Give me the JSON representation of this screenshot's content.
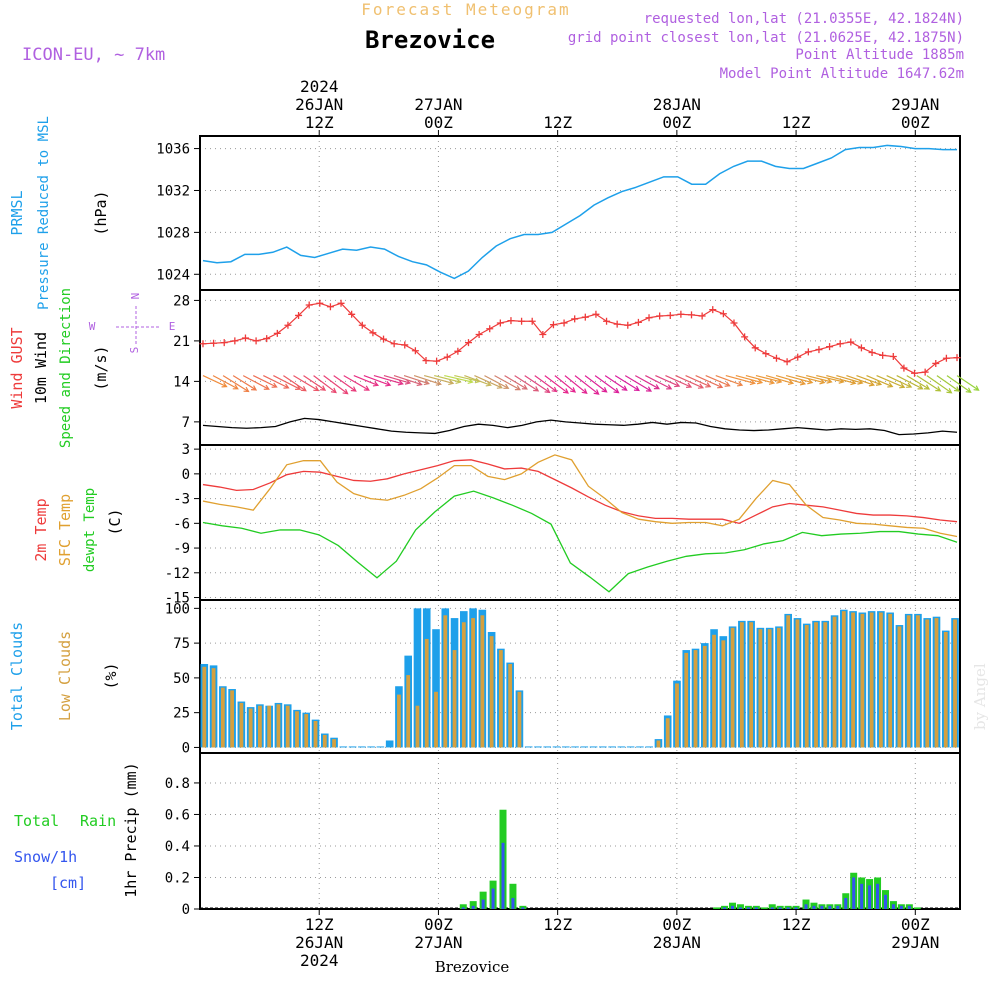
{
  "header": {
    "title": "Forecast Meteogram",
    "location": "Brezovice",
    "model": "ICON-EU, ~ 7km",
    "requested": "requested lon,lat (21.0355E, 42.1824N)",
    "grid": "grid point closest lon,lat (21.0625E, 42.1875N)",
    "point_alt": "Point Altitude 1885m",
    "model_alt": "Model Point Altitude 1647.62m",
    "footer": "Brezovice",
    "watermark": "by Angel"
  },
  "colors": {
    "pressure": "#1ea0ea",
    "gust": "#ee3b3b",
    "wind": "#000000",
    "temp2m": "#ee3b3b",
    "sfc": "#e0a030",
    "dewpt": "#22cc22",
    "total_clouds": "#1ea0ea",
    "low_clouds": "#d4a040",
    "rain": "#22cc22",
    "snow": "#3355ee",
    "purple": "#b060e0",
    "title_orange": "#f0c070"
  },
  "time_axis": {
    "top": [
      {
        "t": 12,
        "label": "12Z",
        "date": "26JAN",
        "year": "2024"
      },
      {
        "t": 24,
        "label": "00Z",
        "date": "27JAN",
        "year": ""
      },
      {
        "t": 36,
        "label": "12Z",
        "date": "",
        "year": ""
      },
      {
        "t": 48,
        "label": "00Z",
        "date": "28JAN",
        "year": ""
      },
      {
        "t": 60,
        "label": "12Z",
        "date": "",
        "year": ""
      },
      {
        "t": 72,
        "label": "00Z",
        "date": "29JAN",
        "year": ""
      }
    ],
    "range_hours": [
      0,
      76.5
    ]
  },
  "chart_data": [
    {
      "type": "line",
      "id": "pressure",
      "ylabel_lines": [
        "PRMSL",
        "Pressure Reduced to MSL",
        "(hPa)"
      ],
      "ylim": [
        1022.5,
        1037.2
      ],
      "yticks": [
        1024,
        1028,
        1032,
        1036
      ],
      "series": [
        {
          "name": "PRMSL",
          "values": [
            1025.3,
            1025.1,
            1025.2,
            1025.9,
            1025.9,
            1026.1,
            1026.6,
            1025.8,
            1025.6,
            1026.0,
            1026.4,
            1026.3,
            1026.6,
            1026.4,
            1025.7,
            1025.2,
            1024.9,
            1024.2,
            1023.6,
            1024.3,
            1025.6,
            1026.7,
            1027.4,
            1027.8,
            1027.8,
            1028.0,
            1028.8,
            1029.6,
            1030.6,
            1031.3,
            1031.9,
            1032.3,
            1032.8,
            1033.3,
            1033.3,
            1032.6,
            1032.6,
            1033.6,
            1034.3,
            1034.8,
            1034.8,
            1034.3,
            1034.1,
            1034.1,
            1034.6,
            1035.1,
            1035.9,
            1036.1,
            1036.1,
            1036.3,
            1036.2,
            1036.0,
            1036.0,
            1035.9,
            1035.9
          ]
        }
      ]
    },
    {
      "type": "line",
      "id": "wind",
      "ylabel_lines": [
        "Wind GUST",
        "10m Wind",
        "Speed and Direction",
        "(m/s)"
      ],
      "compass": [
        "N",
        "S",
        "W",
        "E"
      ],
      "ylim": [
        3.0,
        29.8
      ],
      "yticks": [
        7,
        14,
        21,
        28
      ],
      "series": [
        {
          "name": "Wind GUST",
          "values": [
            20.5,
            20.6,
            20.7,
            21.0,
            21.5,
            21.0,
            21.4,
            22.3,
            23.7,
            25.4,
            27.2,
            27.5,
            26.9,
            27.5,
            25.6,
            23.7,
            22.4,
            21.3,
            20.5,
            20.3,
            19.3,
            17.6,
            17.5,
            18.2,
            19.2,
            20.7,
            22.1,
            23.1,
            24.1,
            24.5,
            24.4,
            24.4,
            22.1,
            23.8,
            24.1,
            24.8,
            25.1,
            25.6,
            24.4,
            23.9,
            23.7,
            24.2,
            25.0,
            25.3,
            25.4,
            25.6,
            25.5,
            25.3,
            26.4,
            25.7,
            24.1,
            21.7,
            19.8,
            18.8,
            18.0,
            17.4,
            18.2,
            19.1,
            19.5,
            20.0,
            20.5,
            20.8,
            19.8,
            19.0,
            18.5,
            18.3,
            16.3,
            15.4,
            15.6,
            17.1,
            18.0,
            18.1
          ]
        },
        {
          "name": "10m Wind",
          "values": [
            6.4,
            6.2,
            6.0,
            5.9,
            6.0,
            6.2,
            7.0,
            7.6,
            7.4,
            7.0,
            6.6,
            6.2,
            5.8,
            5.4,
            5.2,
            5.1,
            5.0,
            5.5,
            6.2,
            6.6,
            6.4,
            6.0,
            6.4,
            7.0,
            7.3,
            7.0,
            6.8,
            6.6,
            6.5,
            6.4,
            6.6,
            6.9,
            6.6,
            6.9,
            6.8,
            6.2,
            5.8,
            5.6,
            5.5,
            5.6,
            5.8,
            6.0,
            5.8,
            5.6,
            5.8,
            5.7,
            5.8,
            5.5,
            4.8,
            4.9,
            5.1,
            5.4,
            5.2
          ]
        }
      ],
      "barbs_dir": [
        115,
        118,
        122,
        122,
        118,
        116,
        116,
        117,
        124,
        121,
        124,
        127,
        127,
        125,
        120,
        112,
        110,
        106,
        106,
        108,
        108,
        108,
        105,
        104,
        103,
        103,
        110,
        114,
        118,
        119,
        121,
        123,
        124,
        126,
        127,
        129,
        129,
        128,
        127,
        126,
        124,
        122,
        121,
        119,
        117,
        114,
        114,
        114,
        114,
        114,
        113,
        110,
        105,
        105,
        105,
        104,
        106,
        106,
        105,
        104,
        104,
        103,
        105,
        106,
        109,
        110,
        113,
        113,
        115,
        117,
        121,
        123,
        125,
        125,
        125,
        124
      ]
    },
    {
      "type": "line",
      "id": "temp",
      "ylabel_lines": [
        "2m Temp",
        "SFC Temp",
        "dewpt Temp",
        "(C)"
      ],
      "ylim": [
        -15.3,
        3.5
      ],
      "yticks": [
        3,
        0,
        -3,
        -6,
        -9,
        -12,
        -15
      ],
      "series": [
        {
          "name": "2m Temp",
          "values": [
            -1.3,
            -1.6,
            -2.0,
            -1.9,
            -1.1,
            -0.1,
            0.3,
            0.2,
            -0.3,
            -0.8,
            -0.9,
            -0.6,
            0.0,
            0.5,
            1.0,
            1.6,
            1.7,
            1.2,
            0.6,
            0.7,
            0.3,
            -0.7,
            -1.7,
            -2.8,
            -3.8,
            -4.6,
            -5.1,
            -5.4,
            -5.4,
            -5.5,
            -5.5,
            -5.5,
            -6.0,
            -5.0,
            -4.0,
            -3.6,
            -3.8,
            -4.0,
            -4.4,
            -4.8,
            -5.0,
            -5.0,
            -5.1,
            -5.3,
            -5.6,
            -5.8
          ]
        },
        {
          "name": "SFC Temp",
          "values": [
            -3.3,
            -3.7,
            -4.0,
            -4.4,
            -1.8,
            1.1,
            1.6,
            1.6,
            -1.0,
            -2.4,
            -3.0,
            -3.2,
            -2.6,
            -1.8,
            -0.5,
            1.0,
            1.0,
            -0.3,
            -0.7,
            0.0,
            1.4,
            2.3,
            1.7,
            -1.5,
            -3.0,
            -4.7,
            -5.5,
            -5.8,
            -6.0,
            -5.9,
            -5.9,
            -6.3,
            -5.5,
            -3.0,
            -0.8,
            -1.3,
            -3.8,
            -5.3,
            -5.6,
            -6.0,
            -6.1,
            -6.3,
            -6.5,
            -6.6,
            -7.2,
            -7.6
          ]
        },
        {
          "name": "dewpt Temp",
          "values": [
            -5.9,
            -6.3,
            -6.6,
            -7.2,
            -6.8,
            -6.8,
            -7.4,
            -8.7,
            -10.7,
            -12.6,
            -10.6,
            -6.8,
            -4.6,
            -2.7,
            -2.1,
            -2.9,
            -3.8,
            -4.8,
            -6.1,
            -10.8,
            -12.5,
            -14.3,
            -12.1,
            -11.3,
            -10.6,
            -10.0,
            -9.7,
            -9.6,
            -9.2,
            -8.5,
            -8.1,
            -7.1,
            -7.5,
            -7.3,
            -7.2,
            -7.0,
            -7.0,
            -7.3,
            -7.5,
            -8.3
          ]
        }
      ]
    },
    {
      "type": "bar",
      "id": "clouds",
      "ylabel_lines": [
        "Total Clouds",
        "Low Clouds",
        "(%)"
      ],
      "ylim": [
        -4,
        106
      ],
      "yticks": [
        0,
        25,
        50,
        75,
        100
      ],
      "series": [
        {
          "name": "Total Clouds",
          "values": [
            60,
            59,
            44,
            42,
            33,
            29,
            31,
            30,
            32,
            31,
            27,
            25,
            20,
            10,
            7,
            0,
            0,
            0,
            0,
            0,
            5,
            44,
            66,
            100,
            100,
            85,
            100,
            93,
            98,
            100,
            99,
            83,
            71,
            61,
            41,
            0,
            0,
            0,
            0,
            0,
            0,
            0,
            0,
            0,
            0,
            0,
            0,
            0,
            0,
            6,
            23,
            48,
            70,
            71,
            75,
            85,
            80,
            87,
            91,
            91,
            86,
            86,
            87,
            96,
            93,
            89,
            91,
            91,
            95,
            99,
            98,
            97,
            98,
            98,
            97,
            88,
            96,
            96,
            93,
            94,
            84,
            93
          ]
        },
        {
          "name": "Low Clouds",
          "values": [
            58,
            57,
            43,
            41,
            32,
            28,
            30,
            30,
            31,
            30,
            26,
            24,
            19,
            9,
            6,
            0,
            0,
            0,
            0,
            0,
            0,
            38,
            52,
            30,
            78,
            40,
            95,
            70,
            90,
            93,
            95,
            80,
            70,
            60,
            40,
            0,
            0,
            0,
            0,
            0,
            0,
            0,
            0,
            0,
            0,
            0,
            0,
            0,
            0,
            5,
            21,
            46,
            68,
            70,
            73,
            81,
            77,
            86,
            90,
            90,
            85,
            85,
            86,
            95,
            92,
            88,
            90,
            90,
            94,
            98,
            97,
            96,
            97,
            97,
            96,
            87,
            95,
            95,
            92,
            93,
            83,
            92
          ]
        }
      ]
    },
    {
      "type": "bar",
      "id": "precip",
      "ylabel_lines": [
        "1hr Precip (mm)"
      ],
      "legend_left": [
        "Total",
        "Rain",
        "Snow/1h",
        "[cm]"
      ],
      "ylim": [
        0,
        0.99
      ],
      "yticks": [
        0,
        0.2,
        0.4,
        0.6,
        0.8
      ],
      "ytick_labels": [
        "0",
        "0.2",
        "0.4",
        "0.6",
        "0.8"
      ],
      "series": [
        {
          "name": "Total Rain",
          "values": [
            0.03,
            0.05,
            0.11,
            0.18,
            0.63,
            0.16,
            0.02,
            0.01,
            0.02,
            0.04,
            0.03,
            0.02,
            0.02,
            0.01,
            0.03,
            0.02,
            0.02,
            0.02,
            0.06,
            0.04,
            0.03,
            0.03,
            0.03,
            0.1,
            0.23,
            0.2,
            0.19,
            0.2,
            0.12,
            0.05,
            0.03,
            0.03,
            0.01
          ]
        },
        {
          "name": "Snow/1h",
          "values": [
            0.01,
            0.02,
            0.06,
            0.13,
            0.42,
            0.07,
            0.01,
            0.0,
            0.01,
            0.02,
            0.01,
            0.01,
            0.01,
            0.0,
            0.01,
            0.01,
            0.01,
            0.01,
            0.03,
            0.02,
            0.02,
            0.02,
            0.02,
            0.07,
            0.2,
            0.16,
            0.15,
            0.16,
            0.09,
            0.03,
            0.02,
            0.02,
            0.0
          ]
        }
      ],
      "times": [
        26.5,
        27.5,
        28.5,
        29.5,
        30.5,
        31.5,
        32.5,
        52.0,
        52.8,
        53.6,
        54.4,
        55.2,
        56.0,
        56.8,
        57.6,
        58.4,
        59.2,
        60.0,
        61.0,
        61.8,
        62.6,
        63.4,
        64.2,
        65.0,
        65.8,
        66.6,
        67.4,
        68.2,
        69.0,
        69.8,
        70.6,
        71.4,
        72.2
      ]
    }
  ]
}
